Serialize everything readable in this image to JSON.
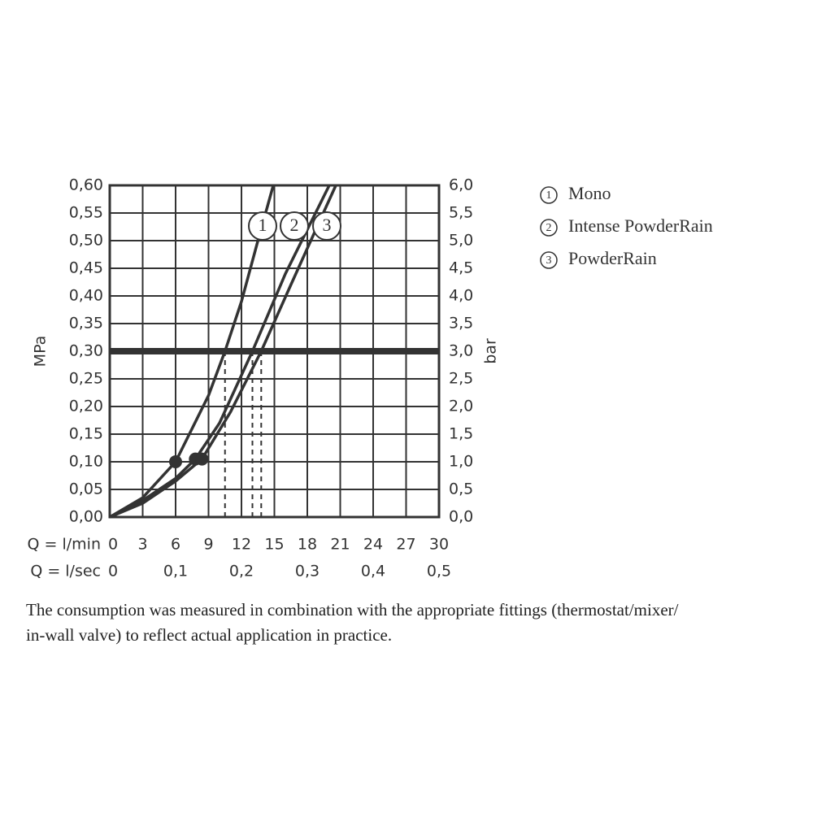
{
  "chart_data": {
    "type": "line",
    "y_label": "MPa",
    "y2_label": "bar",
    "x_label": "Q = l/min",
    "x2_label": "Q = l/sec",
    "xlim": [
      0,
      30
    ],
    "xticks": [
      0,
      3,
      6,
      9,
      12,
      15,
      18,
      21,
      24,
      27,
      30
    ],
    "x2lim": [
      0,
      0.5
    ],
    "x2ticks": [
      0,
      {
        "value": 0.1,
        "label": "0,1"
      },
      {
        "value": 0.2,
        "label": "0,2"
      },
      {
        "value": 0.3,
        "label": "0,3"
      },
      {
        "value": 0.4,
        "label": "0,4"
      },
      {
        "value": 0.5,
        "label": "0,5"
      }
    ],
    "ylim": [
      0,
      0.6
    ],
    "yticks": [
      {
        "value": 0,
        "label": "0,00"
      },
      {
        "value": 0.05,
        "label": "0,05"
      },
      {
        "value": 0.1,
        "label": "0,10"
      },
      {
        "value": 0.15,
        "label": "0,15"
      },
      {
        "value": 0.2,
        "label": "0,20"
      },
      {
        "value": 0.25,
        "label": "0,25"
      },
      {
        "value": 0.3,
        "label": "0,30"
      },
      {
        "value": 0.35,
        "label": "0,35"
      },
      {
        "value": 0.4,
        "label": "0,40"
      },
      {
        "value": 0.45,
        "label": "0,45"
      },
      {
        "value": 0.5,
        "label": "0,50"
      },
      {
        "value": 0.55,
        "label": "0,55"
      },
      {
        "value": 0.6,
        "label": "0,60"
      }
    ],
    "y2lim": [
      0,
      6
    ],
    "y2ticks": [
      {
        "value": 0,
        "label": "0,0"
      },
      {
        "value": 0.5,
        "label": "0,5"
      },
      {
        "value": 1,
        "label": "1,0"
      },
      {
        "value": 1.5,
        "label": "1,5"
      },
      {
        "value": 2,
        "label": "2,0"
      },
      {
        "value": 2.5,
        "label": "2,5"
      },
      {
        "value": 3,
        "label": "3,0"
      },
      {
        "value": 3.5,
        "label": "3,5"
      },
      {
        "value": 4,
        "label": "4,0"
      },
      {
        "value": 4.5,
        "label": "4,5"
      },
      {
        "value": 5,
        "label": "5,0"
      },
      {
        "value": 5.5,
        "label": "5,5"
      },
      {
        "value": 6,
        "label": "6,0"
      }
    ],
    "grid": true,
    "color": "#333333",
    "reference_line": 0.3,
    "series": [
      {
        "name": "Mono",
        "number": "1",
        "color": "#333333",
        "x": [
          0,
          3,
          6,
          9,
          10.5,
          12,
          13.5,
          14.9
        ],
        "values": [
          0,
          0.035,
          0.1,
          0.22,
          0.3,
          0.39,
          0.5,
          0.6
        ]
      },
      {
        "name": "Intense PowderRain",
        "number": "2",
        "color": "#333333",
        "x": [
          0,
          3,
          6,
          7.8,
          10,
          13,
          16,
          18.5,
          20
        ],
        "values": [
          0,
          0.03,
          0.07,
          0.105,
          0.17,
          0.3,
          0.44,
          0.54,
          0.6
        ]
      },
      {
        "name": "PowderRain",
        "number": "3",
        "color": "#333333",
        "x": [
          0,
          3,
          6,
          8.4,
          11,
          13.8,
          16.5,
          19,
          20.6
        ],
        "values": [
          0,
          0.025,
          0.065,
          0.105,
          0.19,
          0.3,
          0.42,
          0.53,
          0.6
        ]
      }
    ],
    "dots": {
      "x": [
        6,
        7.8,
        8.4
      ],
      "values": [
        0.1,
        0.105,
        0.105
      ]
    },
    "drops": {
      "x": [
        10.5,
        13,
        13.8
      ]
    },
    "caption": [
      "The consumption was measured in combination with the appropriate fittings (thermostat/mixer/",
      "in-wall valve) to reflect actual application in practice."
    ]
  }
}
